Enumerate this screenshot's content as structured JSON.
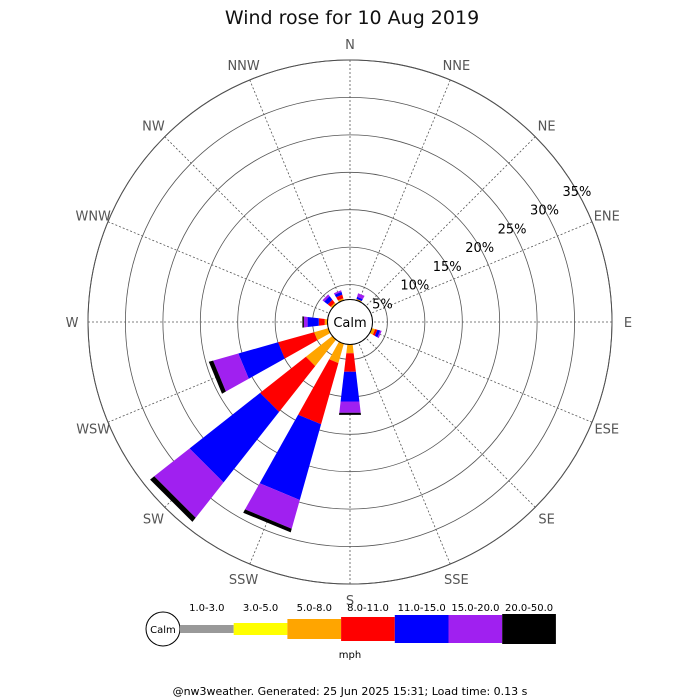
{
  "chart_data": {
    "type": "windrose",
    "title": "Wind rose for 10 Aug 2019",
    "unit": "mph",
    "calm_label": "Calm",
    "directions": [
      "N",
      "NNE",
      "NE",
      "ENE",
      "E",
      "ESE",
      "SE",
      "SSE",
      "S",
      "SSW",
      "SW",
      "WSW",
      "W",
      "WNW",
      "NW",
      "NNW"
    ],
    "rings": [
      5,
      10,
      15,
      20,
      25,
      30,
      35
    ],
    "ring_labels": [
      "5%",
      "10%",
      "15%",
      "20%",
      "25%",
      "30%",
      "35%"
    ],
    "rmax": 35,
    "speed_bins": [
      {
        "label": "1.0-3.0",
        "color": "#999999"
      },
      {
        "label": "3.0-5.0",
        "color": "#ffff00"
      },
      {
        "label": "5.0-8.0",
        "color": "#ffa500"
      },
      {
        "label": "8.0-11.0",
        "color": "#ff0000"
      },
      {
        "label": "11.0-15.0",
        "color": "#0000ff"
      },
      {
        "label": "15.0-20.0",
        "color": "#a020f0"
      },
      {
        "label": "20.0-50.0",
        "color": "#000000"
      }
    ],
    "calm_radius_pct": 3.0,
    "series": {
      "N": [
        0,
        0,
        0,
        0,
        0,
        0,
        0
      ],
      "NNE": [
        0,
        0,
        0.2,
        0,
        0.3,
        0.5,
        0
      ],
      "NE": [
        0,
        0,
        0,
        0,
        0,
        0,
        0
      ],
      "ENE": [
        0,
        0,
        0,
        0,
        0,
        0,
        0
      ],
      "E": [
        0,
        0,
        0,
        0,
        0,
        0,
        0
      ],
      "ESE": [
        0,
        0,
        0.5,
        0.3,
        0.4,
        0.2,
        0
      ],
      "SE": [
        0,
        0,
        0,
        0,
        0,
        0,
        0
      ],
      "SSE": [
        0,
        0,
        0,
        0,
        0,
        0,
        0
      ],
      "S": [
        0,
        0,
        1.2,
        2.5,
        4.0,
        1.5,
        0.3
      ],
      "SSW": [
        0,
        0,
        2.7,
        8.5,
        10.5,
        4.0,
        0.5
      ],
      "SW": [
        0,
        0,
        4.5,
        7.8,
        12.0,
        6.0,
        0.7
      ],
      "WSW": [
        0,
        0,
        2.0,
        5.0,
        5.5,
        3.5,
        0.6
      ],
      "W": [
        0,
        0,
        0.4,
        0.8,
        1.5,
        0.5,
        0.2
      ],
      "WNW": [
        0,
        0,
        0,
        0,
        0,
        0,
        0
      ],
      "NW": [
        0,
        0,
        0.3,
        0.5,
        0.6,
        0.3,
        0
      ],
      "NNW": [
        0,
        0,
        0.3,
        0.5,
        0.4,
        0.2,
        0
      ]
    }
  },
  "footer": "@nw3weather. Generated: 25 Jun 2025 15:31; Load time: 0.13 s"
}
